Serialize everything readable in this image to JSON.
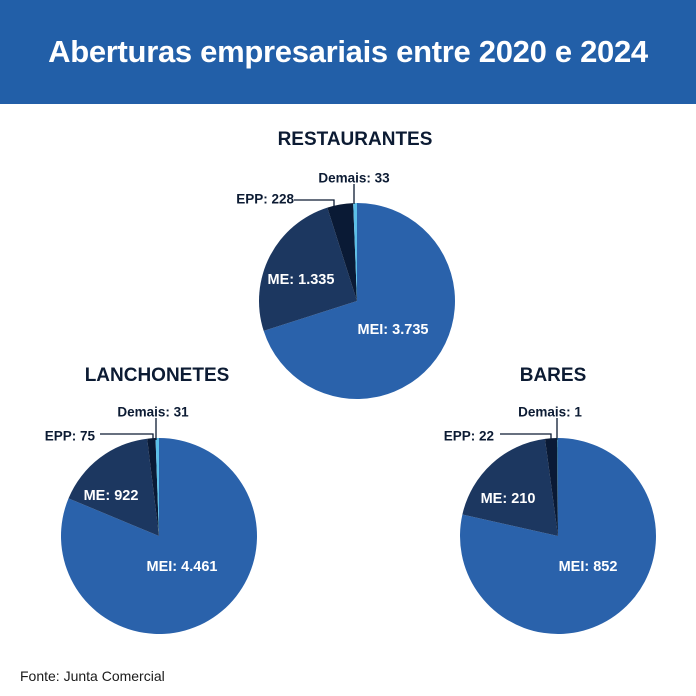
{
  "header": {
    "title": "Aberturas empresariais entre 2020 e 2024"
  },
  "source": "Fonte: Junta Comercial",
  "colors": {
    "banner": "#225fa8",
    "MEI": "#2a62ab",
    "ME": "#1c3760",
    "EPP": "#0a1a35",
    "Demais": "#5bbfe8",
    "outer_label": "#0c1b33"
  },
  "chart_data": [
    {
      "type": "pie",
      "title": "RESTAURANTES",
      "slices": [
        {
          "category": "MEI",
          "value": 3735,
          "label": "MEI: 3.735"
        },
        {
          "category": "ME",
          "value": 1335,
          "label": "ME: 1.335"
        },
        {
          "category": "EPP",
          "value": 228,
          "label": "EPP: 228"
        },
        {
          "category": "Demais",
          "value": 33,
          "label": "Demais: 33"
        }
      ]
    },
    {
      "type": "pie",
      "title": "LANCHONETES",
      "slices": [
        {
          "category": "MEI",
          "value": 4461,
          "label": "MEI: 4.461"
        },
        {
          "category": "ME",
          "value": 922,
          "label": "ME: 922"
        },
        {
          "category": "EPP",
          "value": 75,
          "label": "EPP: 75"
        },
        {
          "category": "Demais",
          "value": 31,
          "label": "Demais: 31"
        }
      ]
    },
    {
      "type": "pie",
      "title": "BARES",
      "slices": [
        {
          "category": "MEI",
          "value": 852,
          "label": "MEI: 852"
        },
        {
          "category": "ME",
          "value": 210,
          "label": "ME: 210"
        },
        {
          "category": "EPP",
          "value": 22,
          "label": "EPP: 22"
        },
        {
          "category": "Demais",
          "value": 1,
          "label": "Demais: 1"
        }
      ]
    }
  ]
}
